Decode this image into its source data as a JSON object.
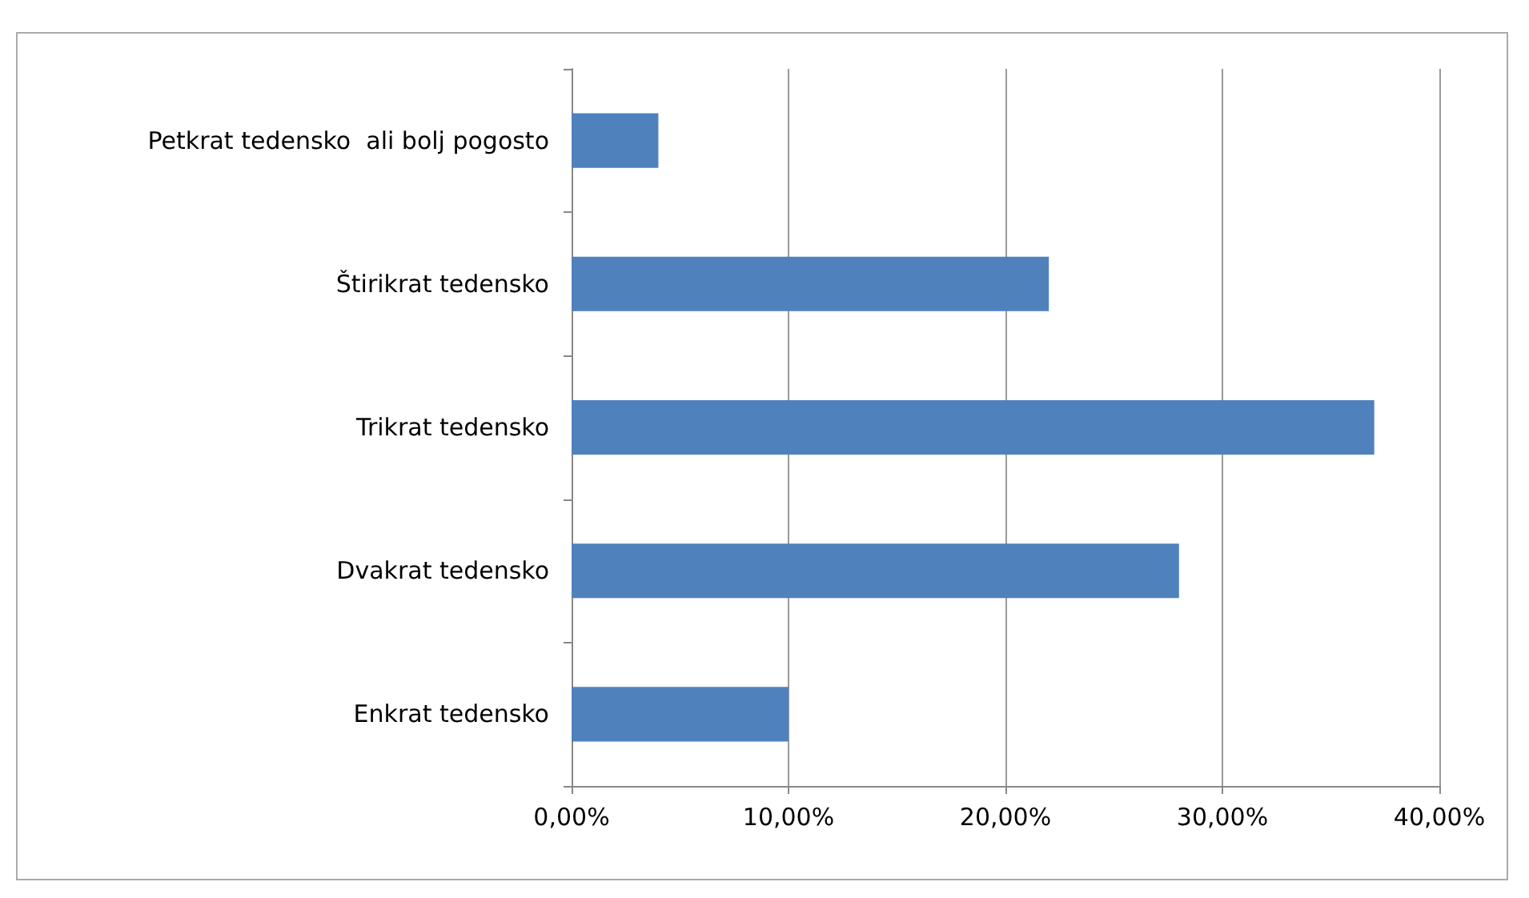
{
  "chart_data": {
    "type": "bar",
    "orientation": "horizontal",
    "categories": [
      "Petkrat tedensko  ali bolj pogosto",
      "Štirikrat tedensko",
      "Trikrat tedensko",
      "Dvakrat tedensko",
      "Enkrat tedensko"
    ],
    "values": [
      4,
      22,
      37,
      28,
      10
    ],
    "color": "#4f81bd",
    "xlim": [
      0,
      40
    ],
    "xticks": [
      {
        "value": 0,
        "label": "0,00%"
      },
      {
        "value": 10,
        "label": "10,00%"
      },
      {
        "value": 20,
        "label": "20,00%"
      },
      {
        "value": 30,
        "label": "30,00%"
      },
      {
        "value": 40,
        "label": "40,00%"
      }
    ],
    "grid": "x"
  }
}
